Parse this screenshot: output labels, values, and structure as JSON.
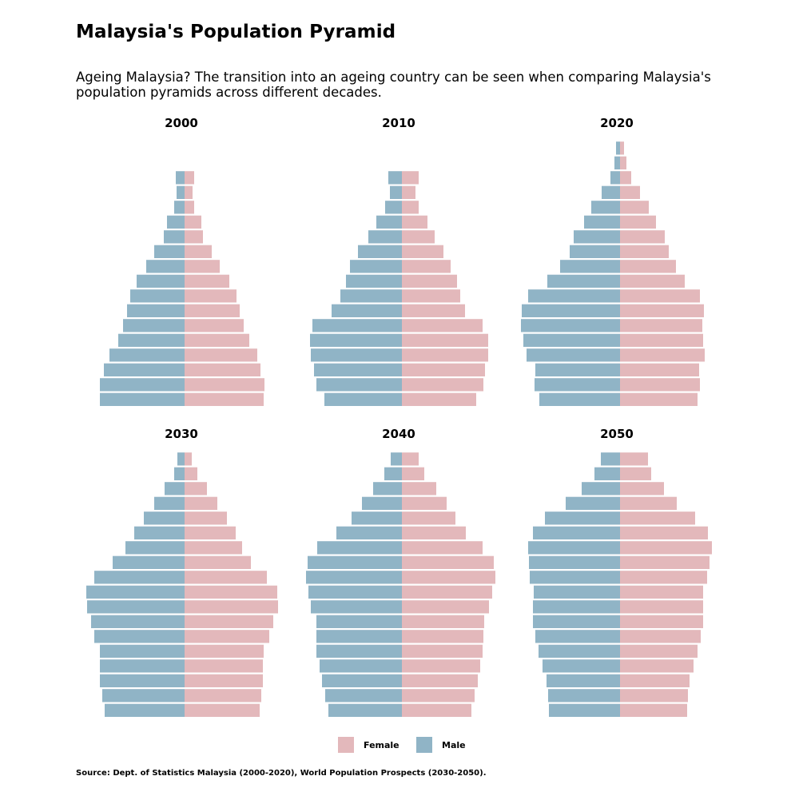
{
  "header": {
    "title": "Malaysia's Population Pyramid",
    "subtitle": "Ageing Malaysia? The transition into an ageing country can be seen when comparing Malaysia's population pyramids across different decades."
  },
  "colors": {
    "female": "#e3b8bb",
    "male": "#90b4c6"
  },
  "legend": {
    "female_label": "Female",
    "male_label": "Male"
  },
  "source": "Source: Dept. of Statistics Malaysia (2000-2020), World Population Prospects (2030-2050).",
  "chart_data": [
    {
      "type": "bar",
      "title": "2000",
      "age_groups_from_oldest": 16,
      "male": [
        11,
        10,
        13,
        22,
        26,
        38,
        48,
        60,
        68,
        72,
        77,
        83,
        94,
        101,
        106,
        106
      ],
      "female": [
        12,
        10,
        12,
        21,
        23,
        34,
        44,
        56,
        65,
        69,
        74,
        81,
        91,
        95,
        100,
        99
      ]
    },
    {
      "type": "bar",
      "title": "2010",
      "age_groups_from_oldest": 16,
      "male": [
        17,
        15,
        21,
        32,
        42,
        55,
        65,
        70,
        77,
        88,
        112,
        115,
        114,
        110,
        107,
        97
      ],
      "female": [
        21,
        17,
        21,
        32,
        41,
        52,
        61,
        69,
        73,
        79,
        101,
        108,
        108,
        104,
        102,
        93
      ]
    },
    {
      "type": "bar",
      "title": "2020",
      "age_groups_from_oldest": 18,
      "male": [
        5,
        7,
        12,
        23,
        36,
        45,
        58,
        63,
        75,
        91,
        115,
        123,
        124,
        121,
        117,
        106,
        107,
        101
      ],
      "female": [
        5,
        8,
        14,
        25,
        36,
        45,
        56,
        61,
        70,
        81,
        100,
        105,
        103,
        104,
        106,
        99,
        100,
        97
      ]
    },
    {
      "type": "bar",
      "title": "2030",
      "age_groups_from_oldest": 18,
      "male": [
        9,
        13,
        25,
        38,
        51,
        63,
        74,
        90,
        113,
        123,
        122,
        117,
        113,
        106,
        106,
        106,
        103,
        100
      ],
      "female": [
        9,
        16,
        28,
        41,
        53,
        64,
        72,
        83,
        103,
        116,
        117,
        111,
        106,
        99,
        98,
        98,
        96,
        94
      ]
    },
    {
      "type": "bar",
      "title": "2040",
      "age_groups_from_oldest": 18,
      "male": [
        14,
        22,
        36,
        50,
        63,
        82,
        106,
        118,
        120,
        117,
        114,
        107,
        107,
        107,
        103,
        100,
        96,
        92
      ],
      "female": [
        21,
        28,
        43,
        56,
        67,
        80,
        101,
        115,
        117,
        113,
        109,
        103,
        102,
        101,
        98,
        95,
        91,
        87
      ]
    },
    {
      "type": "bar",
      "title": "2050",
      "age_groups_from_oldest": 18,
      "male": [
        24,
        32,
        48,
        68,
        94,
        109,
        115,
        114,
        113,
        108,
        109,
        109,
        106,
        102,
        97,
        92,
        90,
        89
      ],
      "female": [
        35,
        39,
        55,
        71,
        94,
        110,
        115,
        112,
        109,
        104,
        104,
        104,
        101,
        97,
        92,
        87,
        85,
        84
      ]
    }
  ]
}
